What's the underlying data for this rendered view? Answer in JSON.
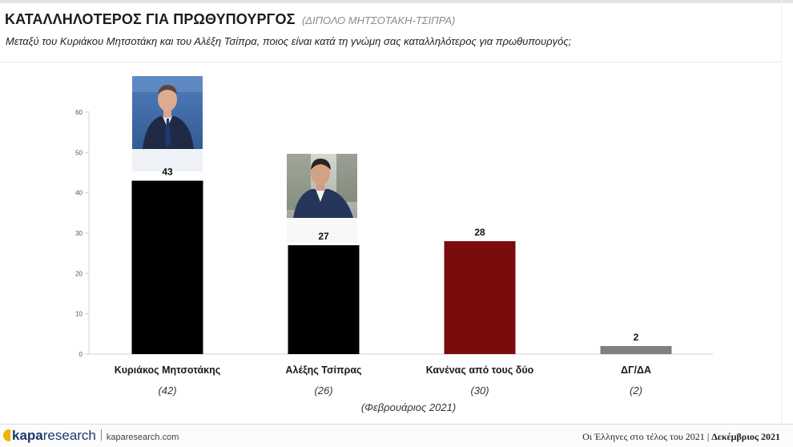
{
  "slide": {
    "title": "ΚΑΤΑΛΛΗΛΟΤΕΡΟΣ ΓΙΑ ΠΡΩΘΥΠΟΥΡΓΟΣ",
    "title_note": "(ΔΙΠΟΛΟ ΜΗΤΣΟΤΑΚΗ-ΤΣΙΠΡΑ)",
    "question": "Μεταξύ του Κυριάκου Μητσοτάκη και του Αλέξη Τσίπρα, ποιος είναι κατά τη γνώμη σας καταλληλότερος για πρωθυπουργός;"
  },
  "chart_data": {
    "type": "bar",
    "categories": [
      "Κυριάκος Μητσοτάκης",
      "Αλέξης Τσίπρας",
      "Κανένας από τους δύο",
      "ΔΓ/ΔΑ"
    ],
    "values": [
      43,
      27,
      28,
      2
    ],
    "previous_values": [
      "(42)",
      "(26)",
      "(30)",
      "(2)"
    ],
    "previous_label": "(Φεβρουάριος 2021)",
    "bar_colors": [
      "#000000",
      "#000000",
      "#7a0c0c",
      "#7f7f7f"
    ],
    "ylim": [
      0,
      60
    ],
    "yticks": [
      0,
      10,
      20,
      30,
      40,
      50,
      60
    ],
    "grid": false,
    "xlabel": "",
    "ylabel": ""
  },
  "photos": [
    {
      "category_index": 0,
      "description": "portrait-kyriakos-mitsotakis"
    },
    {
      "category_index": 1,
      "description": "portrait-alexis-tsipras"
    }
  ],
  "footer": {
    "brand_bold": "kapa",
    "brand_light": "research",
    "site": "kaparesearch.com",
    "report": "Οι Έλληνες στο τέλος του 2021",
    "separator": "|",
    "period": "Δεκέμβριος 2021"
  }
}
